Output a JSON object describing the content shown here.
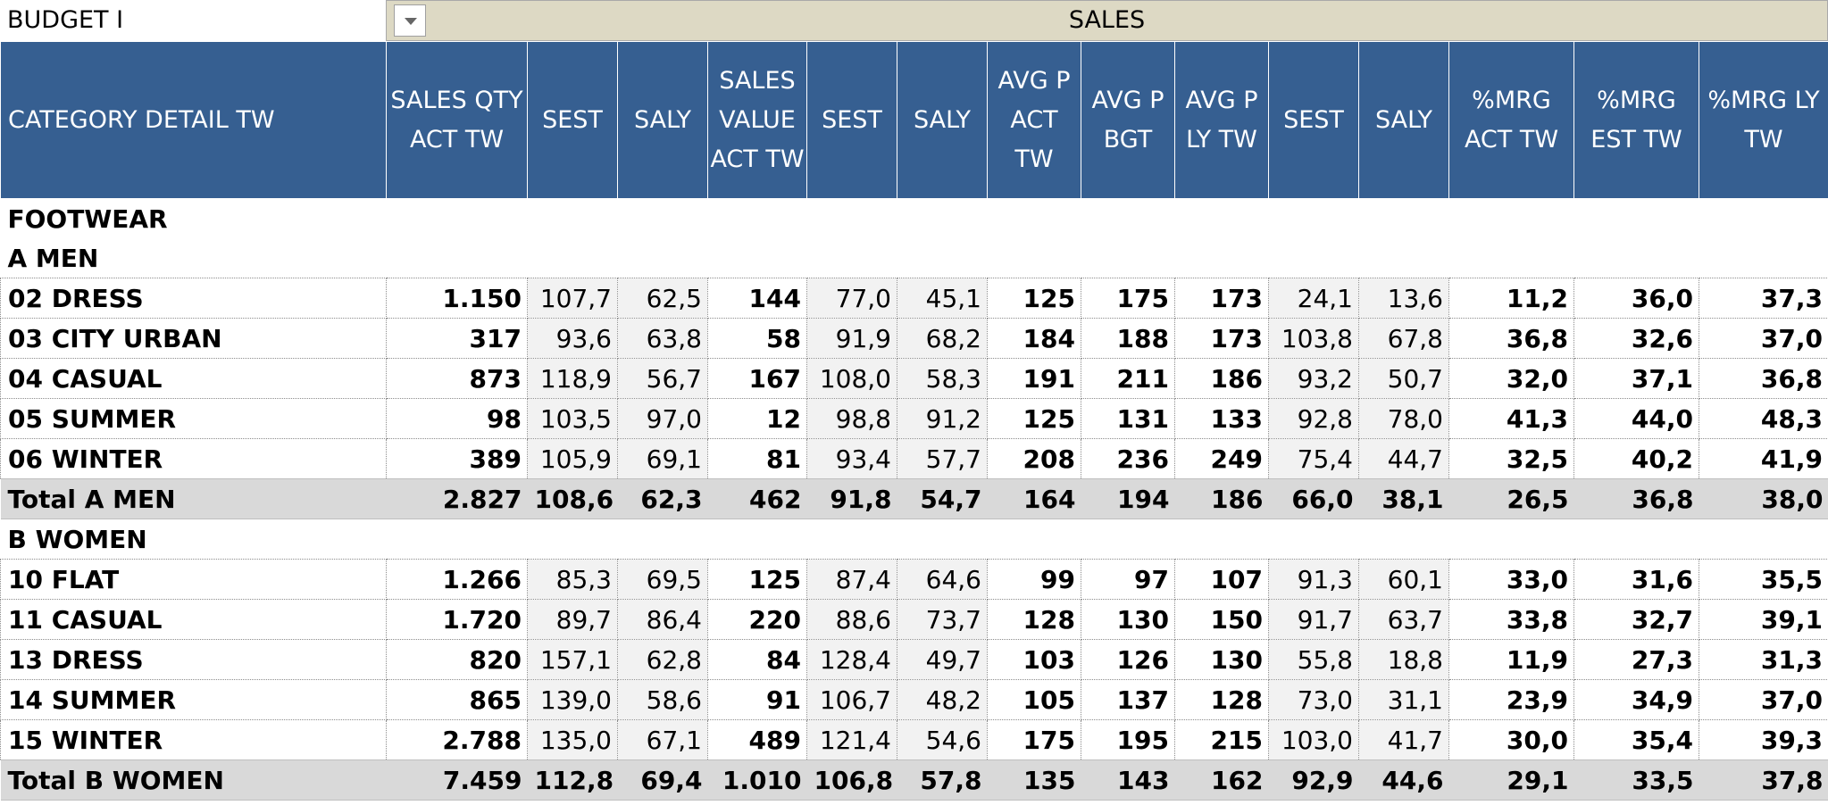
{
  "topbar": {
    "title": "BUDGET I",
    "sales_label": "SALES"
  },
  "columns": [
    {
      "label": "CATEGORY DETAIL TW",
      "w": 432
    },
    {
      "label": "SALES QTY ACT TW",
      "w": 158
    },
    {
      "label": "SEST",
      "w": 101
    },
    {
      "label": "SALY",
      "w": 101
    },
    {
      "label": "SALES VALUE ACT TW",
      "w": 111
    },
    {
      "label": "SEST",
      "w": 101
    },
    {
      "label": "SALY",
      "w": 101
    },
    {
      "label": "AVG P ACT TW",
      "w": 105
    },
    {
      "label": "AVG P BGT",
      "w": 105
    },
    {
      "label": "AVG P LY TW",
      "w": 105
    },
    {
      "label": "SEST",
      "w": 101
    },
    {
      "label": "SALY",
      "w": 101
    },
    {
      "label": "%MRG ACT TW",
      "w": 140
    },
    {
      "label": "%MRG EST TW",
      "w": 140
    },
    {
      "label": "%MRG LY TW",
      "w": 145
    }
  ],
  "rows": [
    {
      "type": "section",
      "label": "FOOTWEAR"
    },
    {
      "type": "section",
      "label": "A MEN"
    },
    {
      "type": "data",
      "label": "02 DRESS",
      "values": [
        "1.150",
        "107,7",
        "62,5",
        "144",
        "77,0",
        "45,1",
        "125",
        "175",
        "173",
        "24,1",
        "13,6",
        "11,2",
        "36,0",
        "37,3"
      ]
    },
    {
      "type": "data",
      "label": "03 CITY URBAN",
      "values": [
        "317",
        "93,6",
        "63,8",
        "58",
        "91,9",
        "68,2",
        "184",
        "188",
        "173",
        "103,8",
        "67,8",
        "36,8",
        "32,6",
        "37,0"
      ]
    },
    {
      "type": "data",
      "label": "04 CASUAL",
      "values": [
        "873",
        "118,9",
        "56,7",
        "167",
        "108,0",
        "58,3",
        "191",
        "211",
        "186",
        "93,2",
        "50,7",
        "32,0",
        "37,1",
        "36,8"
      ]
    },
    {
      "type": "data",
      "label": "05 SUMMER",
      "values": [
        "98",
        "103,5",
        "97,0",
        "12",
        "98,8",
        "91,2",
        "125",
        "131",
        "133",
        "92,8",
        "78,0",
        "41,3",
        "44,0",
        "48,3"
      ]
    },
    {
      "type": "data",
      "label": "06 WINTER",
      "values": [
        "389",
        "105,9",
        "69,1",
        "81",
        "93,4",
        "57,7",
        "208",
        "236",
        "249",
        "75,4",
        "44,7",
        "32,5",
        "40,2",
        "41,9"
      ]
    },
    {
      "type": "total",
      "label": "Total A MEN",
      "values": [
        "2.827",
        "108,6",
        "62,3",
        "462",
        "91,8",
        "54,7",
        "164",
        "194",
        "186",
        "66,0",
        "38,1",
        "26,5",
        "36,8",
        "38,0"
      ]
    },
    {
      "type": "section",
      "label": "B WOMEN"
    },
    {
      "type": "data",
      "label": "10 FLAT",
      "values": [
        "1.266",
        "85,3",
        "69,5",
        "125",
        "87,4",
        "64,6",
        "99",
        "97",
        "107",
        "91,3",
        "60,1",
        "33,0",
        "31,6",
        "35,5"
      ]
    },
    {
      "type": "data",
      "label": "11 CASUAL",
      "values": [
        "1.720",
        "89,7",
        "86,4",
        "220",
        "88,6",
        "73,7",
        "128",
        "130",
        "150",
        "91,7",
        "63,7",
        "33,8",
        "32,7",
        "39,1"
      ]
    },
    {
      "type": "data",
      "label": "13 DRESS",
      "values": [
        "820",
        "157,1",
        "62,8",
        "84",
        "128,4",
        "49,7",
        "103",
        "126",
        "130",
        "55,8",
        "18,8",
        "11,9",
        "27,3",
        "31,3"
      ]
    },
    {
      "type": "data",
      "label": "14 SUMMER",
      "values": [
        "865",
        "139,0",
        "58,6",
        "91",
        "106,7",
        "48,2",
        "105",
        "137",
        "128",
        "73,0",
        "31,1",
        "23,9",
        "34,9",
        "37,0"
      ]
    },
    {
      "type": "data",
      "label": "15 WINTER",
      "values": [
        "2.788",
        "135,0",
        "67,1",
        "489",
        "121,4",
        "54,6",
        "175",
        "195",
        "215",
        "103,0",
        "41,7",
        "30,0",
        "35,4",
        "39,3"
      ]
    },
    {
      "type": "total",
      "label": "Total B WOMEN",
      "values": [
        "7.459",
        "112,8",
        "69,4",
        "1.010",
        "106,8",
        "57,8",
        "135",
        "143",
        "162",
        "92,9",
        "44,6",
        "29,1",
        "33,5",
        "37,8"
      ]
    }
  ]
}
